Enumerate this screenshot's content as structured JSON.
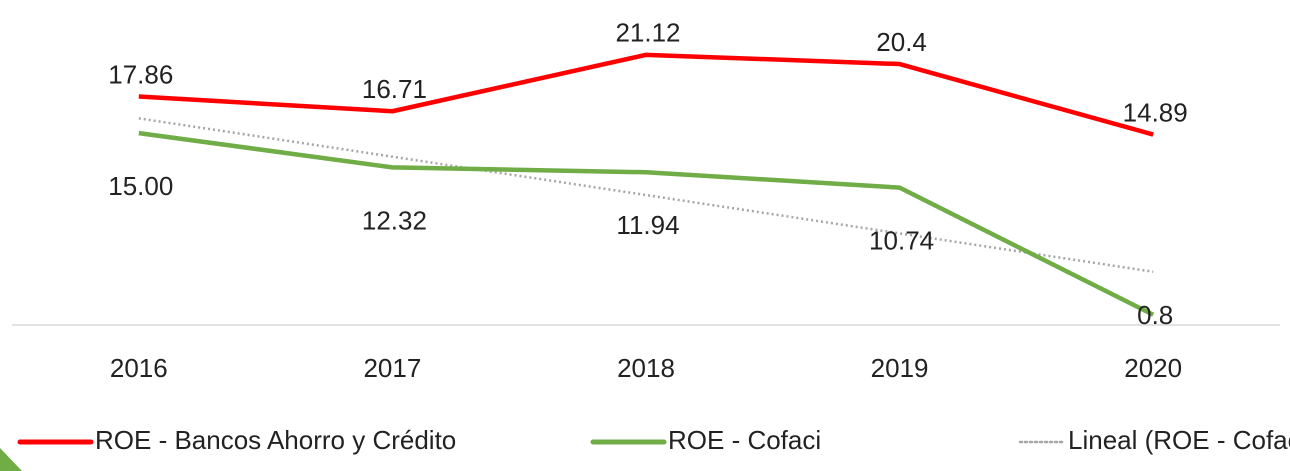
{
  "chart_data": {
    "type": "line",
    "categories": [
      "2016",
      "2017",
      "2018",
      "2019",
      "2020"
    ],
    "series": [
      {
        "name": "ROE - Bancos Ahorro y Crédito",
        "color": "#ff0000",
        "values": [
          17.86,
          16.71,
          21.12,
          20.4,
          14.89
        ]
      },
      {
        "name": "ROE - Cofaci",
        "color": "#70ad47",
        "values": [
          15,
          12.32,
          11.94,
          10.74,
          0.8
        ],
        "value_labels": [
          "15.00",
          "12.32",
          "11.94",
          "10.74",
          "0.8"
        ]
      },
      {
        "name": "Lineal (ROE - Cofaci)",
        "color": "#a6a6a6",
        "style": "dotted",
        "values": [
          16.156,
          13.158,
          10.16,
          7.162,
          4.164
        ]
      }
    ],
    "ylim": [
      0,
      24
    ],
    "legend": "bottom"
  }
}
